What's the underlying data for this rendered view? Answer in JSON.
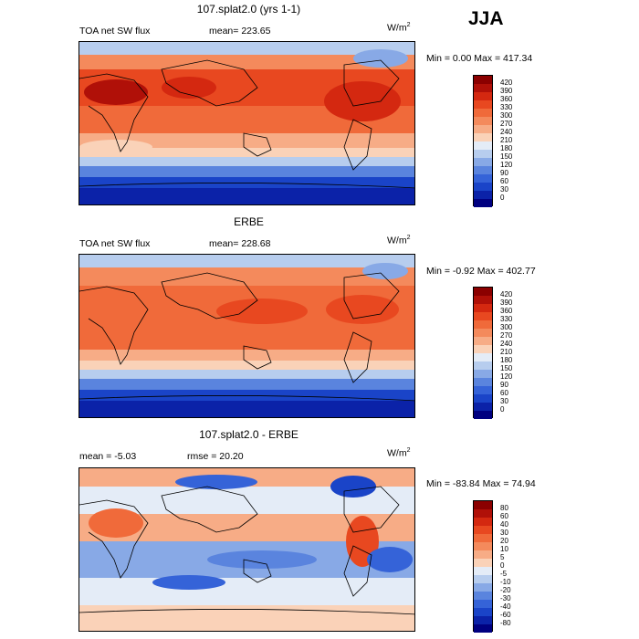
{
  "season": "JJA",
  "panels": [
    {
      "title": "107.splat2.0 (yrs 1-1)",
      "left_label": "TOA net SW flux",
      "mid_label": "mean= 223.65",
      "units": "W/m",
      "units_sup": "2",
      "minmax": "Min =    0.00 Max = 417.34",
      "colorbar": {
        "labels": [
          "420",
          "390",
          "360",
          "330",
          "300",
          "270",
          "240",
          "210",
          "180",
          "150",
          "120",
          "90",
          "60",
          "30",
          "0"
        ],
        "colors": [
          "#8b0000",
          "#b01008",
          "#d42810",
          "#e84820",
          "#f06a3a",
          "#f48a5c",
          "#f7ac86",
          "#fad2b8",
          "#e4ecf7",
          "#b7cdee",
          "#88a9e6",
          "#5a84de",
          "#3563d8",
          "#1a44c8",
          "#0b22a8",
          "#000080"
        ]
      }
    },
    {
      "title": "ERBE",
      "left_label": "TOA net SW flux",
      "mid_label": "mean= 228.68",
      "units": "W/m",
      "units_sup": "2",
      "minmax": "Min =  -0.92 Max = 402.77",
      "colorbar": {
        "labels": [
          "420",
          "390",
          "360",
          "330",
          "300",
          "270",
          "240",
          "210",
          "180",
          "150",
          "120",
          "90",
          "60",
          "30",
          "0"
        ],
        "colors": [
          "#8b0000",
          "#b01008",
          "#d42810",
          "#e84820",
          "#f06a3a",
          "#f48a5c",
          "#f7ac86",
          "#fad2b8",
          "#e4ecf7",
          "#b7cdee",
          "#88a9e6",
          "#5a84de",
          "#3563d8",
          "#1a44c8",
          "#0b22a8",
          "#000080"
        ]
      }
    },
    {
      "title": "107.splat2.0 - ERBE",
      "left_label": "mean =   -5.03",
      "mid_label": "rmse =  20.20",
      "units": "W/m",
      "units_sup": "2",
      "minmax": "Min = -83.84 Max =  74.94",
      "colorbar": {
        "labels": [
          "80",
          "60",
          "40",
          "30",
          "20",
          "10",
          "5",
          "0",
          "-5",
          "-10",
          "-20",
          "-30",
          "-40",
          "-60",
          "-80"
        ],
        "colors": [
          "#8b0000",
          "#b01008",
          "#d42810",
          "#e84820",
          "#f06a3a",
          "#f48a5c",
          "#f7ac86",
          "#fad2b8",
          "#e4ecf7",
          "#b7cdee",
          "#88a9e6",
          "#5a84de",
          "#3563d8",
          "#1a44c8",
          "#0b22a8",
          "#000080"
        ]
      }
    }
  ]
}
